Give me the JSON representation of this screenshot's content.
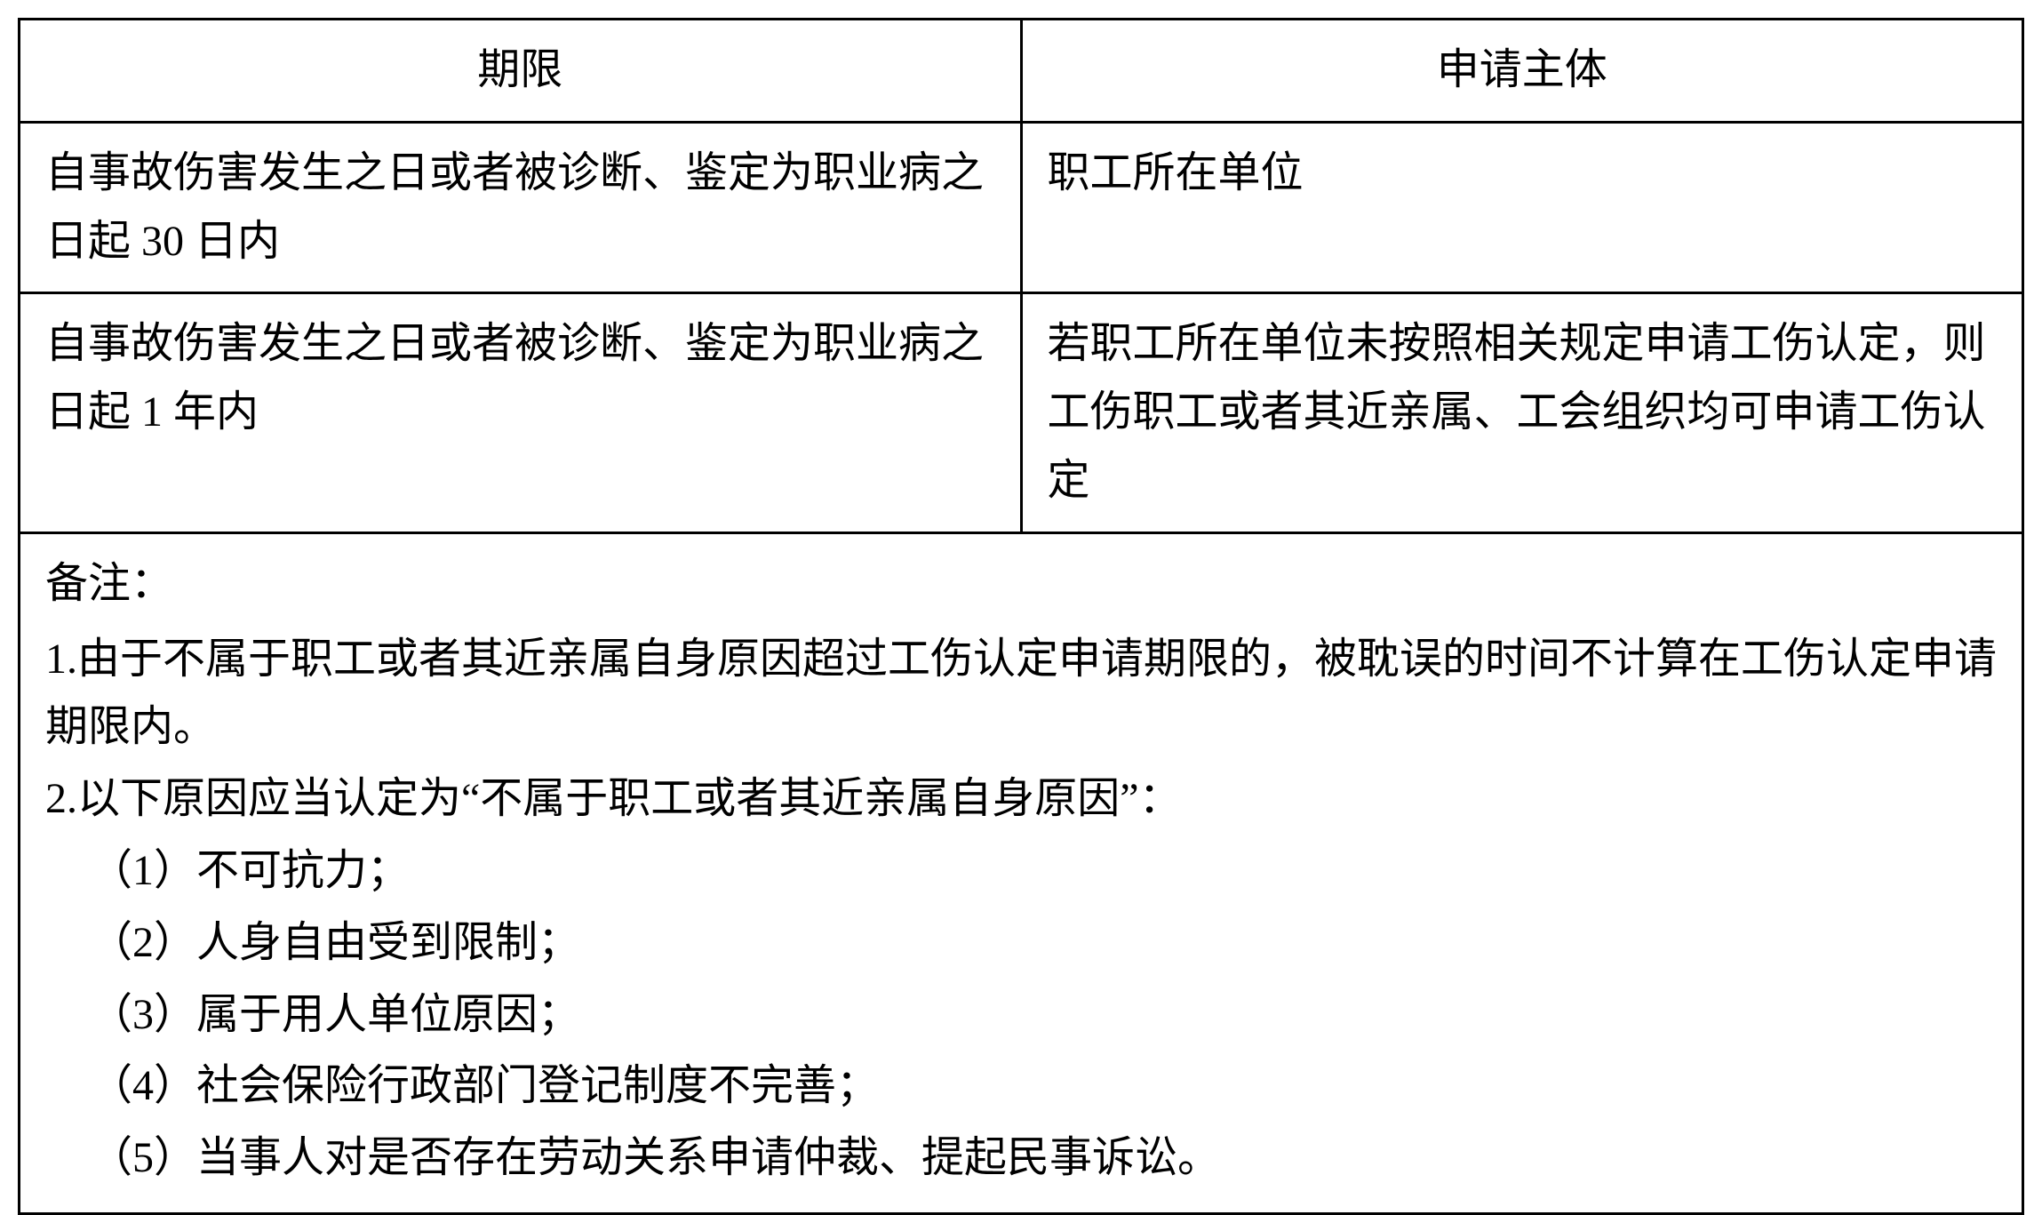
{
  "table": {
    "headers": {
      "col1": "期限",
      "col2": "申请主体"
    },
    "rows": [
      {
        "col1": "自事故伤害发生之日或者被诊断、鉴定为职业病之日起 30 日内",
        "col2": "职工所在单位"
      },
      {
        "col1": "自事故伤害发生之日或者被诊断、鉴定为职业病之日起 1 年内",
        "col2": "若职工所在单位未按照相关规定申请工伤认定，则工伤职工或者其近亲属、工会组织均可申请工伤认定"
      }
    ],
    "notes": {
      "title": "备注：",
      "items": [
        "1.由于不属于职工或者其近亲属自身原因超过工伤认定申请期限的，被耽误的时间不计算在工伤认定申请期限内。",
        "2.以下原因应当认定为“不属于职工或者其近亲属自身原因”："
      ],
      "subitems": [
        "（1）不可抗力；",
        "（2）人身自由受到限制；",
        "（3）属于用人单位原因；",
        "（4）社会保险行政部门登记制度不完善；",
        "（5）当事人对是否存在劳动关系申请仲裁、提起民事诉讼。"
      ]
    }
  },
  "styling": {
    "border_color": "#000000",
    "border_width": 3,
    "background_color": "#ffffff",
    "text_color": "#000000",
    "font_size": 48,
    "font_family": "SimSun",
    "line_height": 1.6,
    "cell_padding_v": 18,
    "cell_padding_h": 28,
    "col_left_width_pct": 50,
    "col_right_width_pct": 50
  }
}
